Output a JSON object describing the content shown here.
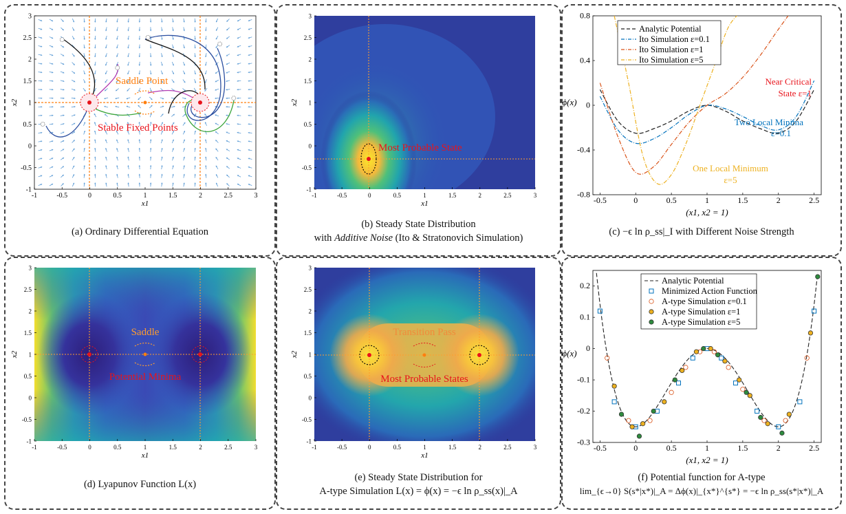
{
  "captions": {
    "a": "(a) Ordinary Differential Equation",
    "b1": "(b) Steady State Distribution",
    "b2_pre": "with ",
    "b2_it": "Additive Noise",
    "b2_post": " (Ito & Stratonovich Simulation)",
    "c": "(c) −ϵ ln ρ_ss|_I with Different Noise Strength",
    "d": "(d) Lyapunov Function L(x)",
    "e1": "(e) Steady State Distribution for",
    "e2": "A-type Simulation  L(x) = ϕ(x) = −ϵ ln ρ_ss(x)|_A",
    "f1": "(f) Potential function for A-type",
    "f2": "lim_{ϵ→0} S(s*|x*)|_A = Δϕ(x)|_{x*}^{s*} = −ϵ ln ρ_ss(s*|x*)|_A"
  },
  "annotations": {
    "a_saddle": "Saddle Point",
    "a_stable": "Stable Fixed Points",
    "b_mps": "Most Probable State",
    "c_near1": "Near Critical",
    "c_near2": "State  ε=1",
    "c_two1": "Two Local Minima",
    "c_two2": "ε=0.1",
    "c_one1": "One Local Minimum",
    "c_one2": "ε=5",
    "d_saddle": "Saddle",
    "d_min": "Potential Minima",
    "e_pass": "Transition Pass",
    "e_mps": "Most Probable States"
  },
  "colors": {
    "orange": "#ff7f0e",
    "red": "#e8131b",
    "blue_arrow": "#5b9bd5",
    "ito01": "#0072bd",
    "ito1": "#d95319",
    "ito5": "#edb120",
    "marker_sq": "#0072bd",
    "marker_o1": "#d95319",
    "marker_o2": "#edb120",
    "marker_o3": "#2e8b3e"
  },
  "chart_data": [
    {
      "id": "a",
      "type": "scatter",
      "title": "",
      "xlabel": "x1",
      "ylabel": "x2",
      "xlim": [
        -1,
        3
      ],
      "ylim": [
        -1,
        3
      ],
      "xticks": [
        "-1",
        "-0.5",
        "0",
        "0.5",
        "1",
        "1.5",
        "2",
        "2.5",
        "3"
      ],
      "yticks": [
        "-1",
        "-0.5",
        "0",
        "0.5",
        "1",
        "1.5",
        "2",
        "2.5",
        "3"
      ],
      "fixed_points": [
        {
          "x": 0,
          "y": 1,
          "kind": "stable"
        },
        {
          "x": 2,
          "y": 1,
          "kind": "stable"
        },
        {
          "x": 1,
          "y": 1,
          "kind": "saddle"
        }
      ],
      "trajectory_starts": [
        [
          -0.5,
          2.45
        ],
        [
          0.5,
          1.8
        ],
        [
          1.05,
          2.5
        ],
        [
          2.35,
          2.35
        ],
        [
          2.6,
          1.1
        ],
        [
          -0.85,
          0.5
        ]
      ],
      "grid": false
    },
    {
      "id": "b",
      "type": "heatmap",
      "xlabel": "x1",
      "ylabel": "x2",
      "xlim": [
        -1,
        3
      ],
      "ylim": [
        -1,
        3
      ],
      "xticks": [
        "-1",
        "-0.5",
        "0",
        "0.5",
        "1",
        "1.5",
        "2",
        "2.5",
        "3"
      ],
      "yticks": [
        "-1",
        "-0.5",
        "0",
        "0.5",
        "1",
        "1.5",
        "2",
        "2.5",
        "3"
      ],
      "peak": {
        "x": 0,
        "y": -0.25
      }
    },
    {
      "id": "c",
      "type": "line",
      "xlabel": "(x1, x2 = 1)",
      "ylabel": "ϕ(x)",
      "xlim": [
        -0.6,
        2.6
      ],
      "ylim": [
        -0.8,
        0.8
      ],
      "xticks": [
        "-0.5",
        "0",
        "0.5",
        "1",
        "1.5",
        "2",
        "2.5"
      ],
      "yticks": [
        "-0.8",
        "-0.4",
        "0",
        "0.4",
        "0.8"
      ],
      "legend_position": "top-left",
      "series": [
        {
          "name": "Analytic Potential",
          "style": "dashed",
          "color": "#222222",
          "x": [
            -0.5,
            -0.25,
            0,
            0.25,
            0.5,
            0.75,
            1,
            1.25,
            1.5,
            1.75,
            2,
            2.25,
            2.5
          ],
          "y": [
            0.14,
            -0.14,
            -0.25,
            -0.21,
            -0.14,
            -0.05,
            0,
            -0.05,
            -0.14,
            -0.21,
            -0.25,
            -0.14,
            0.14
          ]
        },
        {
          "name": "Ito Simulation ε=0.1",
          "style": "dashdot",
          "color": "#0072bd",
          "x": [
            -0.5,
            -0.25,
            0,
            0.25,
            0.5,
            0.75,
            1,
            1.25,
            1.5,
            1.75,
            2,
            2.25,
            2.5
          ],
          "y": [
            0.08,
            -0.22,
            -0.34,
            -0.3,
            -0.2,
            -0.08,
            0,
            -0.03,
            -0.1,
            -0.18,
            -0.22,
            -0.1,
            0.22
          ]
        },
        {
          "name": "Ito Simulation ε=1",
          "style": "dashdot",
          "color": "#d95319",
          "x": [
            -0.5,
            -0.25,
            0,
            0.25,
            0.5,
            0.75,
            1,
            1.25,
            1.5,
            1.75,
            2,
            2.25
          ],
          "y": [
            0.2,
            -0.28,
            -0.6,
            -0.55,
            -0.35,
            -0.15,
            0,
            0.1,
            0.25,
            0.45,
            0.68,
            0.9
          ]
        },
        {
          "name": "Ito Simulation ε=5",
          "style": "dashdot",
          "color": "#edb120",
          "x": [
            -0.3,
            -0.1,
            0.1,
            0.3,
            0.5,
            0.7,
            0.9,
            1.1,
            1.3,
            1.5
          ],
          "y": [
            0.8,
            0.2,
            -0.45,
            -0.7,
            -0.62,
            -0.35,
            0,
            0.35,
            0.7,
            0.85
          ]
        }
      ]
    },
    {
      "id": "d",
      "type": "heatmap",
      "xlabel": "x1",
      "ylabel": "x2",
      "xlim": [
        -1,
        3
      ],
      "ylim": [
        -1,
        3
      ],
      "xticks": [
        "-1",
        "-0.5",
        "0",
        "0.5",
        "1",
        "1.5",
        "2",
        "2.5",
        "3"
      ],
      "yticks": [
        "-1",
        "-0.5",
        "0",
        "0.5",
        "1",
        "1.5",
        "2",
        "2.5",
        "3"
      ],
      "minima": [
        {
          "x": 0,
          "y": 1
        },
        {
          "x": 2,
          "y": 1
        }
      ],
      "saddle": {
        "x": 1,
        "y": 1
      }
    },
    {
      "id": "e",
      "type": "heatmap",
      "xlabel": "x1",
      "ylabel": "x2",
      "xlim": [
        -1,
        3
      ],
      "ylim": [
        -1,
        3
      ],
      "xticks": [
        "-1",
        "-0.5",
        "0",
        "0.5",
        "1",
        "1.5",
        "2",
        "2.5",
        "3"
      ],
      "yticks": [
        "-1",
        "-0.5",
        "0",
        "0.5",
        "1",
        "1.5",
        "2",
        "2.5",
        "3"
      ],
      "peaks": [
        {
          "x": 0,
          "y": 1
        },
        {
          "x": 2,
          "y": 1
        }
      ],
      "pass": {
        "x": 1,
        "y": 1
      }
    },
    {
      "id": "f",
      "type": "scatter",
      "xlabel": "(x1, x2 = 1)",
      "ylabel": "ϕ(x)",
      "xlim": [
        -0.6,
        2.6
      ],
      "ylim": [
        -0.3,
        0.25
      ],
      "xticks": [
        "-0.5",
        "0",
        "0.5",
        "1",
        "1.5",
        "2",
        "2.5"
      ],
      "yticks": [
        "-0.3",
        "-0.2",
        "-0.1",
        "0",
        "0.1",
        "0.2"
      ],
      "legend_position": "top-center",
      "analytic_name": "Analytic Potential",
      "series": [
        {
          "name": "Minimized Action Function",
          "marker": "square",
          "color": "#0072bd",
          "x": [
            -0.5,
            -0.3,
            0,
            0.3,
            0.6,
            0.8,
            1,
            1.2,
            1.4,
            1.7,
            2,
            2.3,
            2.5
          ],
          "y": [
            0.12,
            -0.17,
            -0.25,
            -0.2,
            -0.11,
            -0.03,
            0,
            -0.03,
            -0.11,
            -0.2,
            -0.25,
            -0.17,
            0.12
          ]
        },
        {
          "name": "A-type Simulation ε=0.1",
          "marker": "circle",
          "color": "#d95319",
          "x": [
            -0.4,
            -0.1,
            0.2,
            0.5,
            0.7,
            0.9,
            1.1,
            1.3,
            1.5,
            1.8,
            2.1,
            2.4
          ],
          "y": [
            -0.03,
            -0.23,
            -0.23,
            -0.14,
            -0.06,
            -0.01,
            -0.01,
            -0.06,
            -0.13,
            -0.23,
            -0.23,
            -0.03
          ]
        },
        {
          "name": "A-type Simulation ε=1",
          "marker": "circle",
          "color": "#edb120",
          "x": [
            -0.3,
            -0.05,
            0.1,
            0.4,
            0.65,
            0.85,
            1.05,
            1.25,
            1.45,
            1.6,
            1.85,
            2.15,
            2.45
          ],
          "y": [
            -0.12,
            -0.25,
            -0.24,
            -0.17,
            -0.07,
            -0.01,
            0,
            -0.04,
            -0.1,
            -0.15,
            -0.24,
            -0.21,
            0.05
          ]
        },
        {
          "name": "A-type Simulation ε=5",
          "marker": "circle",
          "color": "#2e8b3e",
          "x": [
            -0.2,
            0.05,
            0.25,
            0.55,
            0.95,
            1.15,
            1.55,
            1.75,
            2.05,
            2.55
          ],
          "y": [
            -0.21,
            -0.28,
            -0.2,
            -0.1,
            0,
            -0.02,
            -0.14,
            -0.22,
            -0.27,
            0.23
          ]
        }
      ]
    }
  ]
}
